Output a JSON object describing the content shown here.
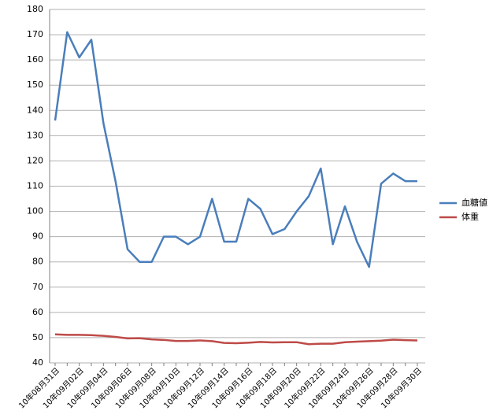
{
  "chart_data": {
    "type": "line",
    "categories": [
      "10年08月31日",
      null,
      "10年09月02日",
      null,
      "10年09月04日",
      null,
      "10年09月06日",
      null,
      "10年09月08日",
      null,
      "10年09月10日",
      null,
      "10年09月12日",
      null,
      "10年09月14日",
      null,
      "10年09月16日",
      null,
      "10年09月18日",
      null,
      "10年09月20日",
      null,
      "10年09月22日",
      null,
      "10年09月24日",
      null,
      "10年09月26日",
      null,
      "10年09月28日",
      null,
      "10年09月30日"
    ],
    "series": [
      {
        "name": "血糖値",
        "color": "#4a7ebb",
        "values": [
          136,
          171,
          161,
          168,
          135,
          112,
          85,
          80,
          80,
          90,
          90,
          87,
          90,
          105,
          88,
          88,
          105,
          101,
          91,
          93,
          100,
          106,
          117,
          87,
          102,
          88,
          78,
          111,
          115,
          112,
          112
        ]
      },
      {
        "name": "体重",
        "color": "#be4b48",
        "values": [
          51.3,
          51.1,
          51.1,
          51.0,
          50.7,
          50.3,
          49.7,
          49.8,
          49.3,
          49.1,
          48.7,
          48.7,
          48.9,
          48.6,
          47.9,
          47.8,
          48.0,
          48.3,
          48.1,
          48.2,
          48.2,
          47.4,
          47.6,
          47.6,
          48.2,
          48.4,
          48.6,
          48.8,
          49.2,
          49.0,
          48.9
        ]
      }
    ],
    "ylim": [
      40,
      180
    ],
    "yticks": [
      40,
      50,
      60,
      70,
      80,
      90,
      100,
      110,
      120,
      130,
      140,
      150,
      160,
      170,
      180
    ],
    "grid": true,
    "legend": "right"
  }
}
